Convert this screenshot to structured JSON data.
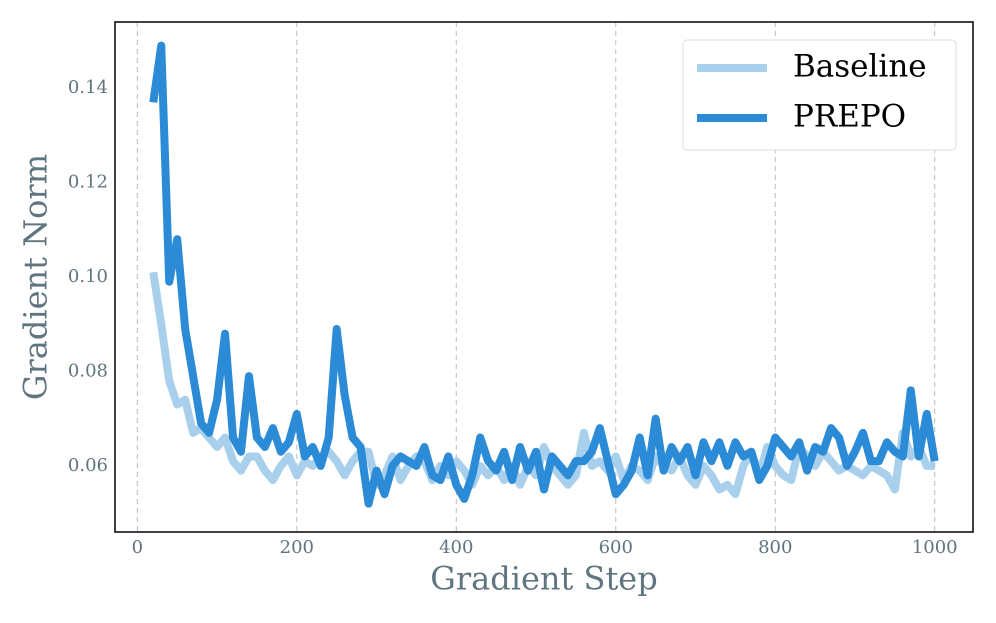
{
  "chart_data": {
    "type": "line",
    "x_label": "Gradient Step",
    "y_label": "Gradient Norm",
    "x": [
      20,
      30,
      40,
      50,
      60,
      70,
      80,
      90,
      100,
      110,
      120,
      130,
      140,
      150,
      160,
      170,
      180,
      190,
      200,
      210,
      220,
      230,
      240,
      250,
      260,
      270,
      280,
      290,
      300,
      310,
      320,
      330,
      340,
      350,
      360,
      370,
      380,
      390,
      400,
      410,
      420,
      430,
      440,
      450,
      460,
      470,
      480,
      490,
      500,
      510,
      520,
      530,
      540,
      550,
      560,
      570,
      580,
      590,
      600,
      610,
      620,
      630,
      640,
      650,
      660,
      670,
      680,
      690,
      700,
      710,
      720,
      730,
      740,
      750,
      760,
      770,
      780,
      790,
      800,
      810,
      820,
      830,
      840,
      850,
      860,
      870,
      880,
      890,
      900,
      910,
      920,
      930,
      940,
      950,
      960,
      970,
      980,
      990,
      1000
    ],
    "series": [
      {
        "name": "Baseline",
        "color": "#a8d0ec",
        "values": [
          0.101,
          0.09,
          0.078,
          0.073,
          0.074,
          0.067,
          0.068,
          0.066,
          0.064,
          0.066,
          0.061,
          0.059,
          0.062,
          0.062,
          0.059,
          0.057,
          0.06,
          0.062,
          0.058,
          0.061,
          0.06,
          0.062,
          0.063,
          0.061,
          0.058,
          0.061,
          0.063,
          0.063,
          0.056,
          0.058,
          0.062,
          0.057,
          0.06,
          0.062,
          0.061,
          0.057,
          0.06,
          0.058,
          0.061,
          0.059,
          0.056,
          0.06,
          0.058,
          0.06,
          0.057,
          0.06,
          0.056,
          0.06,
          0.058,
          0.064,
          0.06,
          0.058,
          0.056,
          0.058,
          0.067,
          0.06,
          0.061,
          0.059,
          0.062,
          0.057,
          0.06,
          0.059,
          0.057,
          0.062,
          0.06,
          0.059,
          0.062,
          0.058,
          0.056,
          0.06,
          0.058,
          0.055,
          0.056,
          0.054,
          0.06,
          0.063,
          0.058,
          0.064,
          0.06,
          0.058,
          0.057,
          0.064,
          0.062,
          0.06,
          0.063,
          0.061,
          0.059,
          0.06,
          0.059,
          0.058,
          0.06,
          0.059,
          0.058,
          0.055,
          0.067,
          0.062,
          0.064,
          0.06,
          0.06
        ]
      },
      {
        "name": "PREPO",
        "color": "#2b8bd6",
        "values": [
          0.137,
          0.149,
          0.099,
          0.108,
          0.089,
          0.079,
          0.069,
          0.067,
          0.074,
          0.088,
          0.066,
          0.063,
          0.079,
          0.066,
          0.064,
          0.068,
          0.063,
          0.065,
          0.071,
          0.062,
          0.064,
          0.06,
          0.066,
          0.089,
          0.075,
          0.066,
          0.064,
          0.052,
          0.059,
          0.054,
          0.06,
          0.062,
          0.061,
          0.06,
          0.064,
          0.058,
          0.057,
          0.062,
          0.056,
          0.053,
          0.058,
          0.066,
          0.061,
          0.059,
          0.063,
          0.057,
          0.064,
          0.059,
          0.063,
          0.055,
          0.062,
          0.06,
          0.058,
          0.061,
          0.061,
          0.063,
          0.068,
          0.061,
          0.054,
          0.056,
          0.059,
          0.066,
          0.058,
          0.07,
          0.059,
          0.064,
          0.061,
          0.064,
          0.058,
          0.065,
          0.061,
          0.065,
          0.06,
          0.065,
          0.062,
          0.063,
          0.057,
          0.06,
          0.066,
          0.064,
          0.062,
          0.065,
          0.059,
          0.064,
          0.063,
          0.068,
          0.066,
          0.06,
          0.063,
          0.067,
          0.061,
          0.061,
          0.065,
          0.063,
          0.062,
          0.076,
          0.062,
          0.071,
          0.061
        ]
      }
    ],
    "xlim": [
      -28,
      1048
    ],
    "ylim": [
      0.046,
      0.154
    ],
    "xticks": [
      0,
      200,
      400,
      600,
      800,
      1000
    ],
    "yticks": [
      0.06,
      0.08,
      {
        "value": 0.1,
        "label": "0.10"
      },
      0.12,
      0.14
    ],
    "grid": "x",
    "legend": "upper right"
  }
}
